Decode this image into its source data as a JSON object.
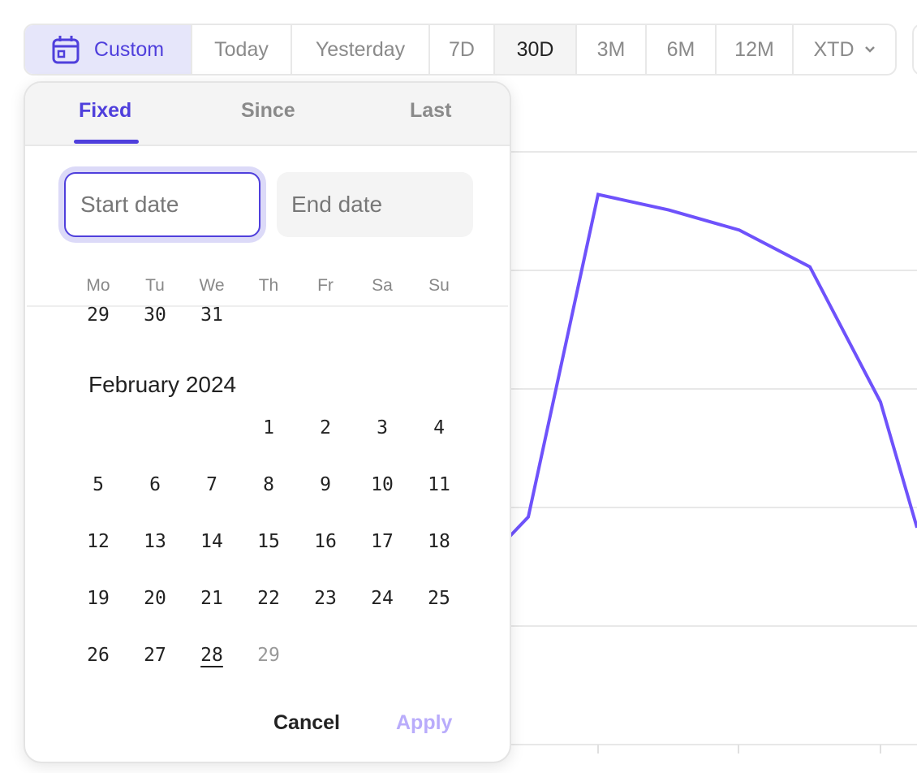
{
  "range_bar": {
    "items": [
      {
        "label": "Custom",
        "icon": "calendar-icon"
      },
      {
        "label": "Today"
      },
      {
        "label": "Yesterday"
      },
      {
        "label": "7D"
      },
      {
        "label": "30D"
      },
      {
        "label": "3M"
      },
      {
        "label": "6M"
      },
      {
        "label": "12M"
      },
      {
        "label": "XTD",
        "icon": "chevron-down-icon"
      }
    ],
    "selected": "30D"
  },
  "popover": {
    "tabs": [
      "Fixed",
      "Since",
      "Last"
    ],
    "active_tab": "Fixed",
    "start_placeholder": "Start date",
    "end_placeholder": "End date",
    "weekdays": [
      "Mo",
      "Tu",
      "We",
      "Th",
      "Fr",
      "Sa",
      "Su"
    ],
    "prev_month_tail": [
      "29",
      "30",
      "31"
    ],
    "month_title": "February 2024",
    "days": [
      "1",
      "2",
      "3",
      "4",
      "5",
      "6",
      "7",
      "8",
      "9",
      "10",
      "11",
      "12",
      "13",
      "14",
      "15",
      "16",
      "17",
      "18",
      "19",
      "20",
      "21",
      "22",
      "23",
      "24",
      "25",
      "26",
      "27",
      "28",
      "29"
    ],
    "today": "28",
    "future_days": [
      "29"
    ],
    "cancel": "Cancel",
    "apply": "Apply"
  },
  "colors": {
    "accent": "#4f3fdc",
    "line": "#6e52fb",
    "apply_disabled": "#b9acfb"
  },
  "chart_data": {
    "type": "line",
    "series": [
      {
        "values": [
          1.92,
          4.64,
          4.51,
          4.34,
          4.03,
          2.89,
          1.83
        ]
      }
    ],
    "grid": true
  }
}
